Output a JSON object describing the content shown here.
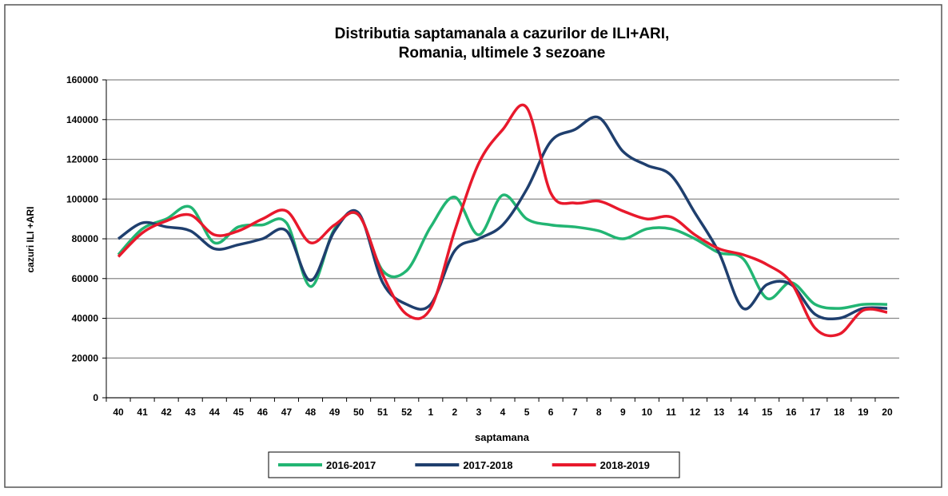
{
  "chart_data": {
    "type": "line",
    "title": [
      "Distributia saptamanala a cazurilor de ILI+ARI,",
      "Romania, ultimele 3 sezoane"
    ],
    "x_label": "saptamana",
    "y_label": "cazuri ILI +ARI",
    "categories": [
      "40",
      "41",
      "42",
      "43",
      "44",
      "45",
      "46",
      "47",
      "48",
      "49",
      "50",
      "51",
      "52",
      "1",
      "2",
      "3",
      "4",
      "5",
      "6",
      "7",
      "8",
      "9",
      "10",
      "11",
      "12",
      "13",
      "14",
      "15",
      "16",
      "17",
      "18",
      "19",
      "20"
    ],
    "ylim": [
      0,
      160000
    ],
    "yticks": [
      0,
      20000,
      40000,
      60000,
      80000,
      100000,
      120000,
      140000,
      160000
    ],
    "grid": true,
    "legend": "bottom",
    "series": [
      {
        "name": "2016-2017",
        "color": "#22b573",
        "values": [
          72000,
          85000,
          90000,
          96000,
          78000,
          86000,
          87000,
          88000,
          56000,
          85000,
          92000,
          64000,
          64000,
          86000,
          101000,
          82000,
          102000,
          90000,
          87000,
          86000,
          84000,
          80000,
          85000,
          85000,
          80000,
          73000,
          70000,
          50000,
          58000,
          47000,
          45000,
          47000,
          47000
        ]
      },
      {
        "name": "2017-2018",
        "color": "#1f3f6e",
        "values": [
          80000,
          88000,
          86000,
          84000,
          75000,
          77000,
          80000,
          84000,
          59000,
          84000,
          93000,
          58000,
          47000,
          47000,
          74000,
          80000,
          87000,
          105000,
          129000,
          135000,
          141000,
          124000,
          117000,
          112000,
          93000,
          73000,
          45000,
          57000,
          57000,
          42000,
          40000,
          45000,
          45000
        ]
      },
      {
        "name": "2018-2019",
        "color": "#e8192c",
        "values": [
          71000,
          83000,
          89000,
          92000,
          82000,
          84000,
          90000,
          94000,
          78000,
          87000,
          92000,
          62000,
          42000,
          45000,
          84000,
          118000,
          135000,
          146000,
          103000,
          98000,
          99000,
          94000,
          90000,
          91000,
          82000,
          75000,
          72000,
          67000,
          58000,
          35000,
          32000,
          44000,
          43000
        ]
      }
    ]
  }
}
